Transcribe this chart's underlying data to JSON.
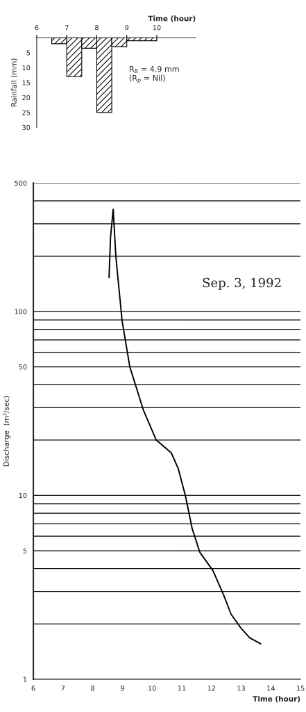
{
  "chart_data": [
    {
      "type": "histogram",
      "xlabel": "Time (hour)",
      "ylabel": "Rainfall (mm)",
      "bins": [
        6.5,
        7,
        7.5,
        8,
        8.5,
        9,
        10
      ],
      "values": [
        2,
        13,
        3.5,
        25,
        3,
        1
      ],
      "color": "#000000",
      "xlim": [
        6,
        11.3
      ],
      "xticks": [
        6,
        7,
        8,
        9,
        10
      ],
      "ylim": [
        30,
        0
      ],
      "yticks": [
        5,
        10,
        15,
        20,
        25,
        30
      ],
      "annotations": [
        "R$_{B}$ = 4.9 mm",
        "(R$_{p}$ = Nil)"
      ]
    },
    {
      "type": "line",
      "xlabel": "Time (hour)",
      "ylabel": "Discharge  (m³/sec)",
      "log": "y",
      "grid": "y",
      "x": [
        8.55,
        8.6,
        8.69,
        8.78,
        8.99,
        9.25,
        9.71,
        10.14,
        10.65,
        10.88,
        11.12,
        11.35,
        11.61,
        12.05,
        12.4,
        12.66,
        12.99,
        13.29,
        13.66
      ],
      "series": [
        {
          "color": "#000000",
          "values": [
            153,
            253,
            360,
            199,
            89,
            50,
            29,
            20,
            17,
            14,
            10,
            6.6,
            4.9,
            3.9,
            2.9,
            2.26,
            1.9,
            1.68,
            1.56
          ]
        }
      ],
      "xlim": [
        6,
        15
      ],
      "xticks": [
        6,
        7,
        8,
        9,
        10,
        11,
        12,
        13,
        14,
        15
      ],
      "ylim": [
        1,
        500
      ],
      "yticks": [
        1,
        {
          "value": 2,
          "label": null
        },
        {
          "value": 3,
          "label": null
        },
        {
          "value": 4,
          "label": null
        },
        5,
        {
          "value": 6,
          "label": null
        },
        {
          "value": 7,
          "label": null
        },
        {
          "value": 8,
          "label": null
        },
        {
          "value": 9,
          "label": null
        },
        10,
        {
          "value": 20,
          "label": null
        },
        {
          "value": 30,
          "label": null
        },
        {
          "value": 40,
          "label": null
        },
        50,
        {
          "value": 60,
          "label": null
        },
        {
          "value": 70,
          "label": null
        },
        {
          "value": 80,
          "label": null
        },
        {
          "value": 90,
          "label": null
        },
        100,
        {
          "value": 200,
          "label": null
        },
        {
          "value": 300,
          "label": null
        },
        {
          "value": 400,
          "label": null
        },
        500
      ],
      "annotations": [
        "Sep. 3, 1992"
      ]
    }
  ]
}
